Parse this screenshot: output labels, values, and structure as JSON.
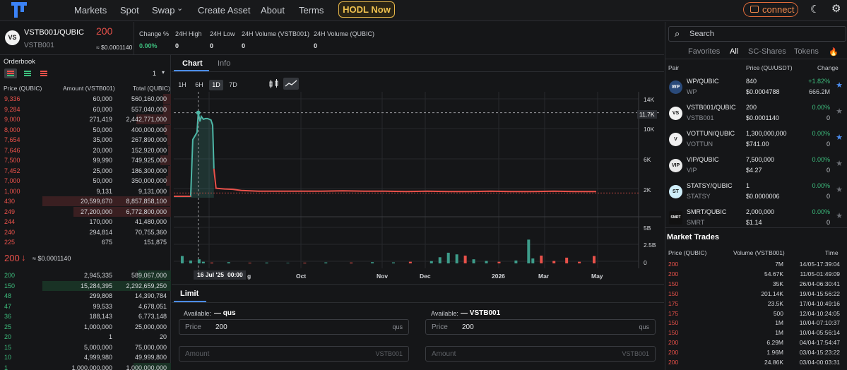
{
  "nav": {
    "items": [
      "Markets",
      "Spot",
      "Swap",
      "Create Asset",
      "About",
      "Terms"
    ],
    "hodl_label": "HODL Now",
    "connect_label": "connect"
  },
  "ticker": {
    "pair": "VSTB001/QUBIC",
    "asset": "VSTB001",
    "icon_text": "VS",
    "last_price": "200",
    "last_price_usd": "≈ $0.0001140",
    "stats": [
      {
        "label": "Change %",
        "value": "0.00%"
      },
      {
        "label": "24H High",
        "value": "0"
      },
      {
        "label": "24H Low",
        "value": "0"
      },
      {
        "label": "24H Volume (VSTB001)",
        "value": "0"
      },
      {
        "label": "24H Volume (QUBIC)",
        "value": "0"
      }
    ]
  },
  "orderbook": {
    "title": "Orderbook",
    "precision": "1",
    "headers": [
      "Price (QUBIC)",
      "Amount (VSTB001)",
      "Total (QUBIC)"
    ],
    "asks": [
      {
        "price": "9,336",
        "amount": "60,000",
        "total": "560,160,000",
        "depth": 0.06
      },
      {
        "price": "9,284",
        "amount": "60,000",
        "total": "557,040,000",
        "depth": 0.06
      },
      {
        "price": "9,000",
        "amount": "271,419",
        "total": "2,442,771,000",
        "depth": 0.27
      },
      {
        "price": "8,000",
        "amount": "50,000",
        "total": "400,000,000",
        "depth": 0.05
      },
      {
        "price": "7,654",
        "amount": "35,000",
        "total": "267,890,000",
        "depth": 0.03
      },
      {
        "price": "7,646",
        "amount": "20,000",
        "total": "152,920,000",
        "depth": 0.02
      },
      {
        "price": "7,500",
        "amount": "99,990",
        "total": "749,925,000",
        "depth": 0.08
      },
      {
        "price": "7,452",
        "amount": "25,000",
        "total": "186,300,000",
        "depth": 0.02
      },
      {
        "price": "7,000",
        "amount": "50,000",
        "total": "350,000,000",
        "depth": 0.04
      },
      {
        "price": "1,000",
        "amount": "9,131",
        "total": "9,131,000",
        "depth": 0.01
      },
      {
        "price": "430",
        "amount": "20,599,670",
        "total": "8,857,858,100",
        "depth": 1.0
      },
      {
        "price": "249",
        "amount": "27,200,000",
        "total": "6,772,800,000",
        "depth": 0.76
      },
      {
        "price": "244",
        "amount": "170,000",
        "total": "41,480,000",
        "depth": 0.0
      },
      {
        "price": "240",
        "amount": "294,814",
        "total": "70,755,360",
        "depth": 0.0
      },
      {
        "price": "225",
        "amount": "675",
        "total": "151,875",
        "depth": 0.0
      }
    ],
    "mid_price": "200",
    "mid_usd": "≈ $0.0001140",
    "bids": [
      {
        "price": "200",
        "amount": "2,945,335",
        "total": "589,067,000",
        "depth": 0.26
      },
      {
        "price": "150",
        "amount": "15,284,395",
        "total": "2,292,659,250",
        "depth": 1.0
      },
      {
        "price": "48",
        "amount": "299,808",
        "total": "14,390,784",
        "depth": 0.0
      },
      {
        "price": "47",
        "amount": "99,533",
        "total": "4,678,051",
        "depth": 0.0
      },
      {
        "price": "36",
        "amount": "188,143",
        "total": "6,773,148",
        "depth": 0.0
      },
      {
        "price": "25",
        "amount": "1,000,000",
        "total": "25,000,000",
        "depth": 0.0
      },
      {
        "price": "20",
        "amount": "1",
        "total": "20",
        "depth": 0.0
      },
      {
        "price": "15",
        "amount": "5,000,000",
        "total": "75,000,000",
        "depth": 0.0
      },
      {
        "price": "10",
        "amount": "4,999,980",
        "total": "49,999,800",
        "depth": 0.0
      },
      {
        "price": "1",
        "amount": "1,000,000,000",
        "total": "1,000,000,000",
        "depth": 0.29
      }
    ]
  },
  "chart_panel": {
    "tabs": [
      "Chart",
      "Info"
    ],
    "timeframes": [
      "1H",
      "6H",
      "1D",
      "7D"
    ],
    "active_timeframe": "1D",
    "crosshair_date": "16 Jul '25",
    "crosshair_time": "00:00",
    "crosshair_price": "11.7K"
  },
  "chart_data": {
    "type": "line",
    "price_axis": [
      "14K",
      "10K",
      "6K",
      "2K"
    ],
    "volume_axis": [
      "5B",
      "2.5B",
      "0"
    ],
    "x_labels": [
      "g",
      "Oct",
      "Nov",
      "Dec",
      "2026",
      "Mar",
      "May"
    ],
    "price_series": {
      "name": "Price",
      "color": "#4db6a6",
      "points": [
        [
          0,
          200
        ],
        [
          0.04,
          200
        ],
        [
          0.045,
          8000
        ],
        [
          0.055,
          9000
        ],
        [
          0.058,
          11700
        ],
        [
          0.062,
          10500
        ],
        [
          0.065,
          11200
        ],
        [
          0.07,
          10800
        ],
        [
          0.075,
          10900
        ],
        [
          0.08,
          10900
        ],
        [
          0.088,
          10700
        ],
        [
          0.092,
          10000
        ],
        [
          0.095,
          4000
        ],
        [
          0.1,
          1300
        ],
        [
          0.11,
          1250
        ],
        [
          0.12,
          1200
        ],
        [
          0.14,
          1150
        ],
        [
          0.16,
          1000
        ],
        [
          0.18,
          950
        ],
        [
          0.2,
          900
        ],
        [
          0.25,
          900
        ],
        [
          0.3,
          900
        ],
        [
          0.35,
          900
        ],
        [
          0.4,
          950
        ],
        [
          0.45,
          900
        ],
        [
          0.5,
          900
        ],
        [
          0.55,
          850
        ],
        [
          0.6,
          900
        ],
        [
          0.65,
          850
        ],
        [
          0.7,
          850
        ],
        [
          0.75,
          900
        ],
        [
          0.8,
          850
        ],
        [
          0.85,
          850
        ],
        [
          0.9,
          900
        ],
        [
          0.95,
          850
        ],
        [
          1.0,
          850
        ]
      ]
    },
    "highlight_color": "#e8514a",
    "volume_series": {
      "up_color": "#3d9c8a",
      "down_color": "#e8514a",
      "bars": [
        [
          0.02,
          0.9,
          "up"
        ],
        [
          0.04,
          0.35,
          "up"
        ],
        [
          0.06,
          0.5,
          "up"
        ],
        [
          0.07,
          0.2,
          "up"
        ],
        [
          0.09,
          0.1,
          "down"
        ],
        [
          0.13,
          0.15,
          "up"
        ],
        [
          0.18,
          0.08,
          "down"
        ],
        [
          0.22,
          0.1,
          "up"
        ],
        [
          0.27,
          0.06,
          "up"
        ],
        [
          0.31,
          0.08,
          "down"
        ],
        [
          0.36,
          0.12,
          "up"
        ],
        [
          0.42,
          0.1,
          "down"
        ],
        [
          0.47,
          0.15,
          "up"
        ],
        [
          0.52,
          0.12,
          "up"
        ],
        [
          0.56,
          0.2,
          "down"
        ],
        [
          0.61,
          0.28,
          "up"
        ],
        [
          0.63,
          0.75,
          "up"
        ],
        [
          0.65,
          1.3,
          "up"
        ],
        [
          0.67,
          1.1,
          "up"
        ],
        [
          0.69,
          0.95,
          "down"
        ],
        [
          0.71,
          0.5,
          "up"
        ],
        [
          0.74,
          0.3,
          "up"
        ],
        [
          0.77,
          0.2,
          "down"
        ],
        [
          0.81,
          0.35,
          "up"
        ],
        [
          0.84,
          2.9,
          "up"
        ],
        [
          0.85,
          0.6,
          "up"
        ],
        [
          0.87,
          0.95,
          "down"
        ],
        [
          0.9,
          0.3,
          "down"
        ],
        [
          0.93,
          0.7,
          "down"
        ],
        [
          0.96,
          0.2,
          "down"
        ],
        [
          0.995,
          0.9,
          "down"
        ]
      ]
    }
  },
  "order_form": {
    "tab": "Limit",
    "buy": {
      "available_label": "Available:",
      "available_value": "— qus",
      "price_label": "Price",
      "price_value": "200",
      "price_unit": "qus",
      "amount_label": "Amount",
      "amount_unit": "VSTB001"
    },
    "sell": {
      "available_label": "Available:",
      "available_value": "— VSTB001",
      "price_label": "Price",
      "price_value": "200",
      "price_unit": "qus",
      "amount_label": "Amount",
      "amount_unit": "VSTB001"
    }
  },
  "markets": {
    "search_placeholder": "Search",
    "tabs": [
      "Favorites",
      "All",
      "SC-Shares",
      "Tokens"
    ],
    "active_tab": "All",
    "headers": [
      "Pair",
      "Price (QU/USDT)",
      "Change"
    ],
    "rows": [
      {
        "pair": "WP/QUBIC",
        "symbol": "WP",
        "price": "840",
        "usd": "$0.0004788",
        "change": "+1.82%",
        "volume": "666.2M",
        "fav": true,
        "logo": "WP",
        "logo_bg": "#2a4a7a"
      },
      {
        "pair": "VSTB001/QUBIC",
        "symbol": "VSTB001",
        "price": "200",
        "usd": "$0.0001140",
        "change": "0.00%",
        "volume": "0",
        "fav": false,
        "logo": "VS",
        "logo_bg": "#f2f2f2"
      },
      {
        "pair": "VOTTUN/QUBIC",
        "symbol": "VOTTUN",
        "price": "1,300,000,000",
        "usd": "$741.00",
        "change": "0.00%",
        "volume": "0",
        "fav": true,
        "logo": "V",
        "logo_bg": "#f0f0f0"
      },
      {
        "pair": "VIP/QUBIC",
        "symbol": "VIP",
        "price": "7,500,000",
        "usd": "$4.27",
        "change": "0.00%",
        "volume": "0",
        "fav": false,
        "logo": "VIP",
        "logo_bg": "#e8e8e8"
      },
      {
        "pair": "STATSY/QUBIC",
        "symbol": "STATSY",
        "price": "1",
        "usd": "$0.0000006",
        "change": "0.00%",
        "volume": "0",
        "fav": false,
        "logo": "ST",
        "logo_bg": "#cfeefa"
      },
      {
        "pair": "SMRT/QUBIC",
        "symbol": "SMRT",
        "price": "2,000,000",
        "usd": "$1.14",
        "change": "0.00%",
        "volume": "0",
        "fav": false,
        "logo": "SMRT",
        "logo_bg": "#111111"
      }
    ]
  },
  "trades": {
    "title": "Market Trades",
    "headers": [
      "Price (QUBIC)",
      "Volume (VSTB001)",
      "Time"
    ],
    "rows": [
      {
        "price": "200",
        "amount": "7M",
        "time": "14/05-17:39:04"
      },
      {
        "price": "200",
        "amount": "54.67K",
        "time": "11/05-01:49:09"
      },
      {
        "price": "150",
        "amount": "35K",
        "time": "26/04-06:30:41"
      },
      {
        "price": "150",
        "amount": "201.14K",
        "time": "19/04-15:56:22"
      },
      {
        "price": "175",
        "amount": "23.5K",
        "time": "17/04-10:49:16"
      },
      {
        "price": "175",
        "amount": "500",
        "time": "12/04-10:24:05"
      },
      {
        "price": "150",
        "amount": "1M",
        "time": "10/04-07:10:37"
      },
      {
        "price": "150",
        "amount": "1M",
        "time": "10/04-05:56:14"
      },
      {
        "price": "200",
        "amount": "6.29M",
        "time": "04/04-17:54:47"
      },
      {
        "price": "200",
        "amount": "1.96M",
        "time": "03/04-15:23:22"
      },
      {
        "price": "200",
        "amount": "24.86K",
        "time": "03/04-00:03:31"
      }
    ]
  }
}
